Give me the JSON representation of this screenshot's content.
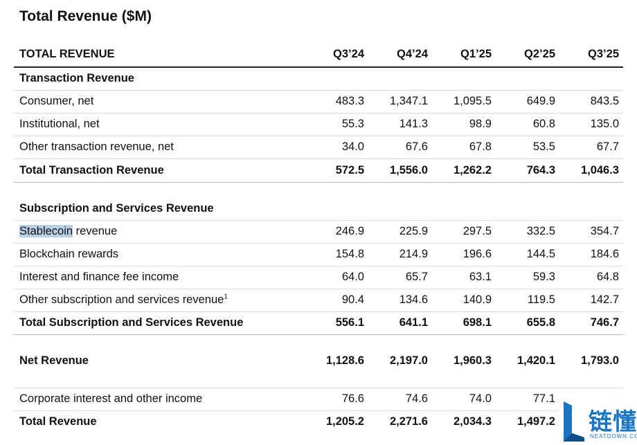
{
  "title": "Total Revenue ($M)",
  "header": {
    "label": "TOTAL REVENUE",
    "periods": [
      "Q3’24",
      "Q4’24",
      "Q1’25",
      "Q2’25",
      "Q3’25"
    ]
  },
  "transaction": {
    "section_title": "Transaction Revenue",
    "rows": [
      {
        "label": "Consumer, net",
        "values": [
          "483.3",
          "1,347.1",
          "1,095.5",
          "649.9",
          "843.5"
        ]
      },
      {
        "label": "Institutional, net",
        "values": [
          "55.3",
          "141.3",
          "98.9",
          "60.8",
          "135.0"
        ]
      },
      {
        "label": "Other transaction revenue, net",
        "values": [
          "34.0",
          "67.6",
          "67.8",
          "53.5",
          "67.7"
        ]
      }
    ],
    "total": {
      "label": "Total Transaction Revenue",
      "values": [
        "572.5",
        "1,556.0",
        "1,262.2",
        "764.3",
        "1,046.3"
      ]
    }
  },
  "subscription": {
    "section_title": "Subscription and Services Revenue",
    "stablecoin": {
      "highlight": "Stablecoin",
      "rest": " revenue",
      "values": [
        "246.9",
        "225.9",
        "297.5",
        "332.5",
        "354.7"
      ]
    },
    "rows": [
      {
        "label": "Blockchain rewards",
        "values": [
          "154.8",
          "214.9",
          "196.6",
          "144.5",
          "184.6"
        ]
      },
      {
        "label": "Interest and finance fee income",
        "values": [
          "64.0",
          "65.7",
          "63.1",
          "59.3",
          "64.8"
        ]
      }
    ],
    "other": {
      "label": "Other subscription and services revenue",
      "footnote": "1",
      "values": [
        "90.4",
        "134.6",
        "140.9",
        "119.5",
        "142.7"
      ]
    },
    "total": {
      "label": "Total Subscription and Services Revenue",
      "values": [
        "556.1",
        "641.1",
        "698.1",
        "655.8",
        "746.7"
      ]
    }
  },
  "net_revenue": {
    "label": "Net Revenue",
    "values": [
      "1,128.6",
      "2,197.0",
      "1,960.3",
      "1,420.1",
      "1,793.0"
    ]
  },
  "corporate": {
    "label": "Corporate interest and other income",
    "values": [
      "76.6",
      "74.6",
      "74.0",
      "77.1",
      ""
    ]
  },
  "total_revenue": {
    "label": "Total Revenue",
    "values": [
      "1,205.2",
      "2,271.6",
      "2,034.3",
      "1,497.2",
      ""
    ]
  },
  "watermark": {
    "text": "链懂",
    "sub": "NEATDOWN.COM",
    "color": "#1a76c2"
  }
}
